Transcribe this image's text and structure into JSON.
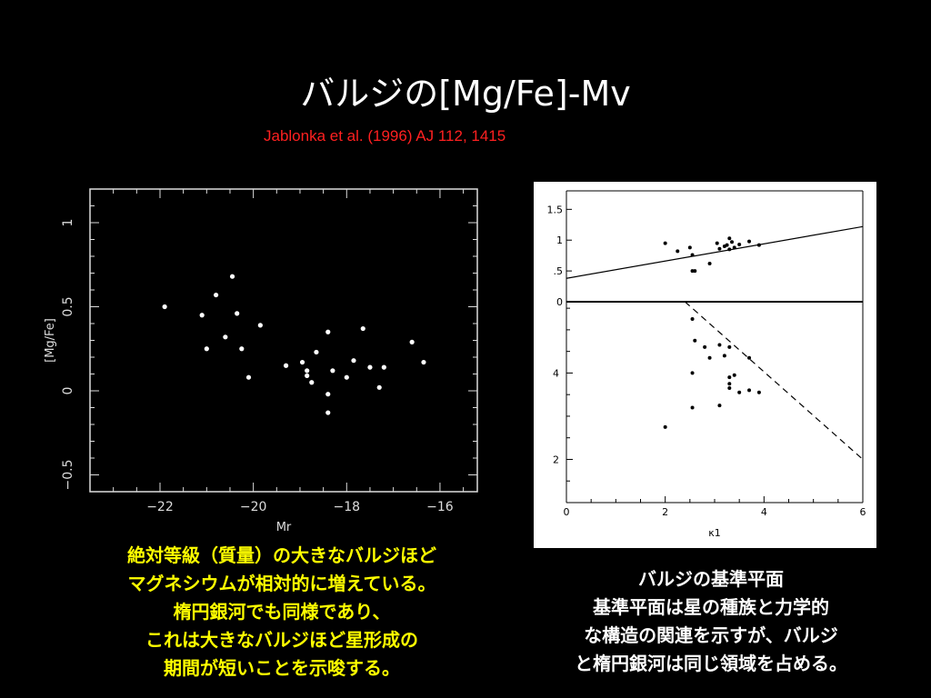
{
  "slide": {
    "title": "バルジの[Mg/Fe]-Mv",
    "citation": "Jablonka et al. (1996) AJ 112, 1415"
  },
  "left_caption": {
    "lines": [
      "絶対等級（質量）の大きなバルジほど",
      "マグネシウムが相対的に増えている。",
      "楕円銀河でも同様であり、",
      "これは大きなバルジほど星形成の",
      "期間が短いことを示唆する。"
    ]
  },
  "right_caption": {
    "lines": [
      "バルジの基準平面",
      "基準平面は星の種族と力学的",
      "な構造の関連を示すが、バルジ",
      "と楕円銀河は同じ領域を占める。"
    ]
  },
  "colors": {
    "background": "#000000",
    "title": "#ffffff",
    "citation": "#ff2020",
    "left_caption": "#ffff00",
    "right_caption": "#ffffff"
  },
  "chart_data": [
    {
      "type": "scatter",
      "xlabel": "Mr",
      "ylabel": "[Mg/Fe]",
      "xlim": [
        -23.5,
        -15.2
      ],
      "ylim": [
        -0.6,
        1.2
      ],
      "xticks": [
        -22,
        -20,
        -18,
        -16
      ],
      "xtick_labels": [
        "−22",
        "−20",
        "−18",
        "−16"
      ],
      "yticks": [
        -0.5,
        0,
        0.5,
        1
      ],
      "ytick_labels": [
        "−0.5",
        "0",
        "0.5",
        "1"
      ],
      "grid": false,
      "theme": "dark",
      "points": [
        {
          "x": -21.9,
          "y": 0.5
        },
        {
          "x": -21.1,
          "y": 0.45
        },
        {
          "x": -21.0,
          "y": 0.25
        },
        {
          "x": -20.8,
          "y": 0.57
        },
        {
          "x": -20.6,
          "y": 0.32
        },
        {
          "x": -20.45,
          "y": 0.68
        },
        {
          "x": -20.35,
          "y": 0.46
        },
        {
          "x": -20.25,
          "y": 0.25
        },
        {
          "x": -20.1,
          "y": 0.08
        },
        {
          "x": -19.85,
          "y": 0.39
        },
        {
          "x": -19.3,
          "y": 0.15
        },
        {
          "x": -18.95,
          "y": 0.17
        },
        {
          "x": -18.85,
          "y": 0.12
        },
        {
          "x": -18.85,
          "y": 0.09
        },
        {
          "x": -18.75,
          "y": 0.05
        },
        {
          "x": -18.65,
          "y": 0.23
        },
        {
          "x": -18.4,
          "y": 0.35
        },
        {
          "x": -18.4,
          "y": -0.02
        },
        {
          "x": -18.4,
          "y": -0.13
        },
        {
          "x": -18.3,
          "y": 0.12
        },
        {
          "x": -18.0,
          "y": 0.08
        },
        {
          "x": -17.85,
          "y": 0.18
        },
        {
          "x": -17.65,
          "y": 0.37
        },
        {
          "x": -17.5,
          "y": 0.14
        },
        {
          "x": -17.3,
          "y": 0.02
        },
        {
          "x": -17.2,
          "y": 0.14
        },
        {
          "x": -16.6,
          "y": 0.29
        },
        {
          "x": -16.35,
          "y": 0.17
        }
      ]
    },
    {
      "type": "scatter",
      "panel": "top",
      "xlim": [
        0,
        6
      ],
      "ylim": [
        0,
        1.8
      ],
      "yticks": [
        0,
        0.5,
        1,
        1.5
      ],
      "ytick_labels": [
        "0",
        ".5",
        "1",
        "1.5"
      ],
      "grid": false,
      "theme": "light",
      "line": {
        "x": [
          0,
          6
        ],
        "y": [
          0.38,
          1.22
        ],
        "style": "solid"
      },
      "points": [
        {
          "x": 2.0,
          "y": 0.95
        },
        {
          "x": 2.25,
          "y": 0.82
        },
        {
          "x": 2.5,
          "y": 0.88
        },
        {
          "x": 2.55,
          "y": 0.76
        },
        {
          "x": 2.55,
          "y": 0.5
        },
        {
          "x": 2.6,
          "y": 0.5
        },
        {
          "x": 2.9,
          "y": 0.62
        },
        {
          "x": 3.05,
          "y": 0.95
        },
        {
          "x": 3.1,
          "y": 0.86
        },
        {
          "x": 3.2,
          "y": 0.9
        },
        {
          "x": 3.25,
          "y": 0.92
        },
        {
          "x": 3.3,
          "y": 1.03
        },
        {
          "x": 3.3,
          "y": 0.85
        },
        {
          "x": 3.35,
          "y": 0.97
        },
        {
          "x": 3.4,
          "y": 0.88
        },
        {
          "x": 3.5,
          "y": 0.93
        },
        {
          "x": 3.7,
          "y": 0.98
        },
        {
          "x": 3.9,
          "y": 0.92
        }
      ]
    },
    {
      "type": "scatter",
      "panel": "bottom",
      "xlabel": "κ1",
      "xlim": [
        0,
        6
      ],
      "ylim": [
        1.0,
        5.65
      ],
      "xticks": [
        0,
        2,
        4,
        6
      ],
      "xtick_labels": [
        "0",
        "2",
        "4",
        "6"
      ],
      "yticks": [
        2,
        4
      ],
      "ytick_labels": [
        "2",
        "4"
      ],
      "grid": false,
      "theme": "light",
      "line": {
        "x": [
          2.4,
          6
        ],
        "y": [
          5.65,
          2.0
        ],
        "style": "dashed"
      },
      "points": [
        {
          "x": 2.55,
          "y": 5.25
        },
        {
          "x": 2.6,
          "y": 4.75
        },
        {
          "x": 2.55,
          "y": 4.0
        },
        {
          "x": 2.55,
          "y": 3.2
        },
        {
          "x": 2.0,
          "y": 2.75
        },
        {
          "x": 2.8,
          "y": 4.6
        },
        {
          "x": 2.9,
          "y": 4.35
        },
        {
          "x": 3.1,
          "y": 4.65
        },
        {
          "x": 3.1,
          "y": 3.25
        },
        {
          "x": 3.2,
          "y": 4.4
        },
        {
          "x": 3.3,
          "y": 4.6
        },
        {
          "x": 3.3,
          "y": 3.9
        },
        {
          "x": 3.3,
          "y": 3.75
        },
        {
          "x": 3.3,
          "y": 3.65
        },
        {
          "x": 3.4,
          "y": 3.95
        },
        {
          "x": 3.5,
          "y": 3.55
        },
        {
          "x": 3.7,
          "y": 4.35
        },
        {
          "x": 3.7,
          "y": 3.6
        },
        {
          "x": 3.9,
          "y": 3.55
        }
      ]
    }
  ]
}
